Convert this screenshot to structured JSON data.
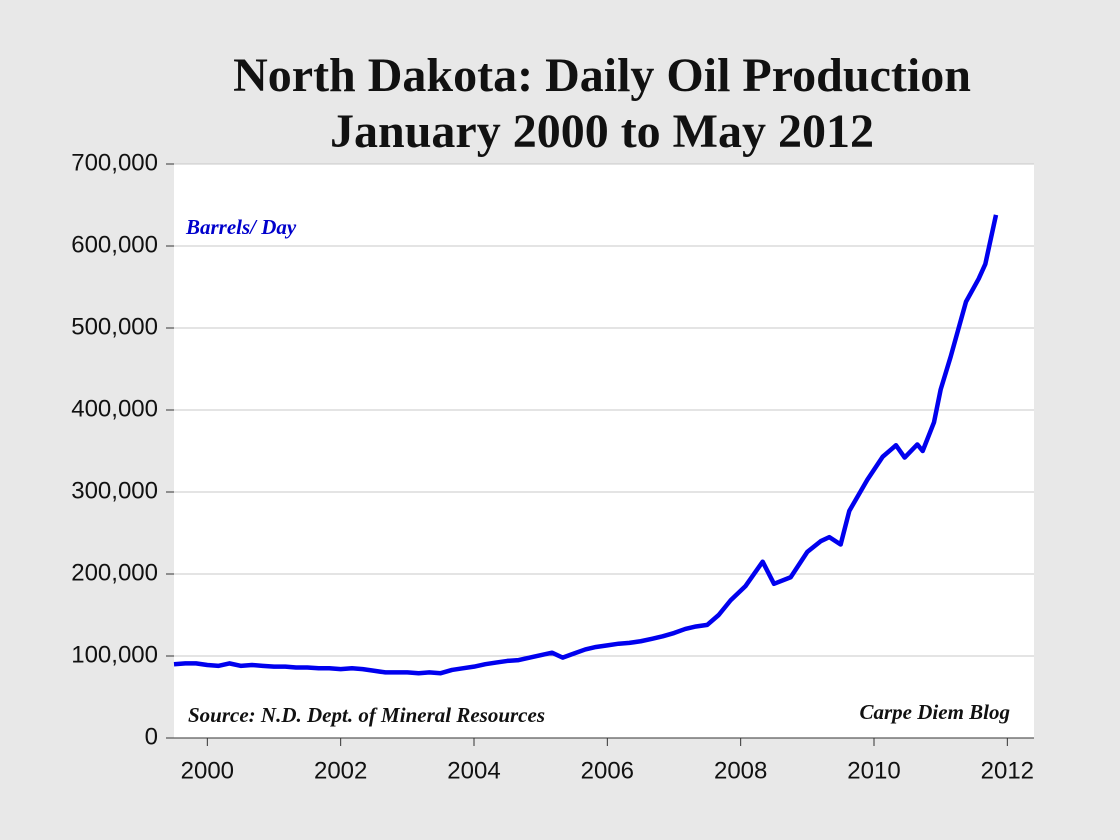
{
  "chart_data": {
    "type": "line",
    "title": "North Dakota: Daily Oil Production",
    "subtitle": "January 2000 to May 2012",
    "annotations": [
      "Barrels/ Day",
      "Source: N.D. Dept. of Mineral Resources",
      "Carpe Diem Blog"
    ],
    "x": [
      2000,
      2000.17,
      2000.33,
      2000.5,
      2000.67,
      2000.83,
      2001,
      2001.17,
      2001.33,
      2001.5,
      2001.67,
      2001.83,
      2002,
      2002.17,
      2002.33,
      2002.5,
      2002.67,
      2002.83,
      2003,
      2003.17,
      2003.33,
      2003.5,
      2003.67,
      2003.83,
      2004,
      2004.17,
      2004.33,
      2004.5,
      2004.67,
      2004.83,
      2005,
      2005.17,
      2005.33,
      2005.5,
      2005.67,
      2005.83,
      2006,
      2006.17,
      2006.33,
      2006.5,
      2006.67,
      2006.83,
      2007,
      2007.17,
      2007.33,
      2007.5,
      2007.67,
      2007.83,
      2008,
      2008.17,
      2008.35,
      2008.57,
      2008.83,
      2009,
      2009.25,
      2009.5,
      2009.7,
      2009.83,
      2010,
      2010.13,
      2010.4,
      2010.63,
      2010.83,
      2010.96,
      2011.15,
      2011.23,
      2011.4,
      2011.5,
      2011.65,
      2011.88,
      2012.07,
      2012.17,
      2012.33
    ],
    "series": [
      {
        "color": "#0000ee",
        "values": [
          90000,
          91000,
          91000,
          89000,
          88000,
          91000,
          88000,
          89000,
          88000,
          87000,
          87000,
          86000,
          86000,
          85000,
          85000,
          84000,
          85000,
          84000,
          82000,
          80000,
          80000,
          80000,
          79000,
          80000,
          79000,
          83000,
          85000,
          87000,
          90000,
          92000,
          94000,
          95000,
          98000,
          101000,
          104000,
          98000,
          103000,
          108000,
          111000,
          113000,
          115000,
          116000,
          118000,
          121000,
          124000,
          128000,
          133000,
          136000,
          138000,
          150000,
          168000,
          185000,
          215000,
          188000,
          196000,
          227000,
          240000,
          245000,
          236000,
          277000,
          315000,
          343000,
          357000,
          342000,
          358000,
          350000,
          385000,
          425000,
          465000,
          532000,
          560000,
          578000,
          638000
        ]
      }
    ],
    "xlim": [
      2000,
      2012.9
    ],
    "xticks": [
      {
        "value": 2000.5,
        "label": "2000"
      },
      {
        "value": 2002.5,
        "label": "2002"
      },
      {
        "value": 2004.5,
        "label": "2004"
      },
      {
        "value": 2006.5,
        "label": "2006"
      },
      {
        "value": 2008.5,
        "label": "2008"
      },
      {
        "value": 2010.5,
        "label": "2010"
      },
      {
        "value": 2012.5,
        "label": "2012"
      }
    ],
    "ylim": [
      0,
      700000
    ],
    "yticks": [
      0,
      {
        "value": 100000,
        "label": "100,000"
      },
      {
        "value": 200000,
        "label": "200,000"
      },
      {
        "value": 300000,
        "label": "300,000"
      },
      {
        "value": 400000,
        "label": "400,000"
      },
      {
        "value": 500000,
        "label": "500,000"
      },
      {
        "value": 600000,
        "label": "600,000"
      },
      {
        "value": 700000,
        "label": "700,000"
      }
    ],
    "grid": true
  }
}
